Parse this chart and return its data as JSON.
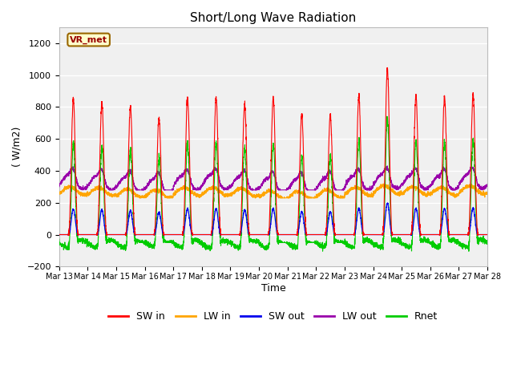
{
  "title": "Short/Long Wave Radiation",
  "xlabel": "Time",
  "ylabel": "( W/m2)",
  "ylim": [
    -200,
    1300
  ],
  "yticks": [
    -200,
    0,
    200,
    400,
    600,
    800,
    1000,
    1200
  ],
  "n_days": 15,
  "pts_per_day": 288,
  "colors": {
    "SW_in": "#FF0000",
    "LW_in": "#FFA500",
    "SW_out": "#0000EE",
    "LW_out": "#9900AA",
    "Rnet": "#00CC00"
  },
  "station_label": "VR_met",
  "fig_bg": "#F0F0F0",
  "plot_bg": "#F0F0F0",
  "day_peaks_SWin": [
    840,
    825,
    800,
    730,
    855,
    855,
    820,
    860,
    750,
    750,
    870,
    1040,
    870,
    860,
    875
  ],
  "day_peaks_narrow_factor": 0.35,
  "lw_in_day_base": [
    275,
    270,
    260,
    255,
    270,
    270,
    265,
    250,
    245,
    255,
    270,
    280,
    275,
    270,
    280
  ],
  "lw_out_day_base": [
    330,
    325,
    315,
    305,
    325,
    330,
    320,
    310,
    305,
    310,
    325,
    335,
    330,
    325,
    335
  ]
}
